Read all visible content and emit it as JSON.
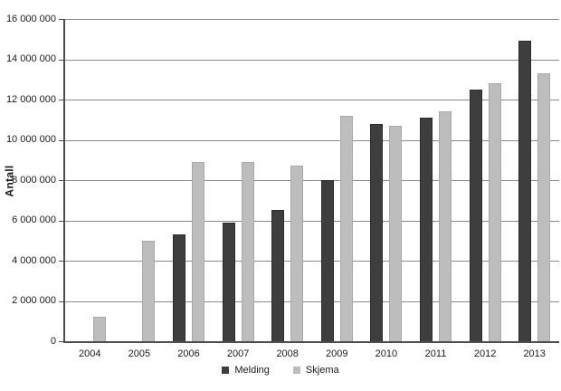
{
  "chart_data": {
    "type": "bar",
    "title": "",
    "ylabel": "Antall",
    "xlabel": "",
    "categories": [
      "2004",
      "2005",
      "2006",
      "2007",
      "2008",
      "2009",
      "2010",
      "2011",
      "2012",
      "2013"
    ],
    "series": [
      {
        "name": "Melding",
        "color": "#3e3e3e",
        "border_color": "#2b2b2b",
        "values": [
          null,
          null,
          5300000,
          5900000,
          6500000,
          8000000,
          10800000,
          11100000,
          12500000,
          14900000
        ]
      },
      {
        "name": "Skjema",
        "color": "#bdbdbd",
        "border_color": "#a9a9a9",
        "values": [
          1200000,
          5000000,
          8900000,
          8900000,
          8700000,
          11200000,
          10700000,
          11400000,
          12800000,
          13300000
        ]
      }
    ],
    "ylim": [
      0,
      16000000
    ],
    "ytick_step": 2000000,
    "yticks": [
      {
        "value": 0,
        "label": "0"
      },
      {
        "value": 2000000,
        "label": "2 000 000"
      },
      {
        "value": 4000000,
        "label": "4 000 000"
      },
      {
        "value": 6000000,
        "label": "6 000 000"
      },
      {
        "value": 8000000,
        "label": "8 000 000"
      },
      {
        "value": 10000000,
        "label": "10 000 000"
      },
      {
        "value": 12000000,
        "label": "12 000 000"
      },
      {
        "value": 14000000,
        "label": "14 000 000"
      },
      {
        "value": 16000000,
        "label": "16 000 000"
      }
    ],
    "grid": "horizontal",
    "legend_position": "bottom",
    "colors": {
      "background": "#ffffff",
      "gridline": "#8c8c8c",
      "axis": "#4d4d4d",
      "text": "#1a1a1a"
    }
  }
}
